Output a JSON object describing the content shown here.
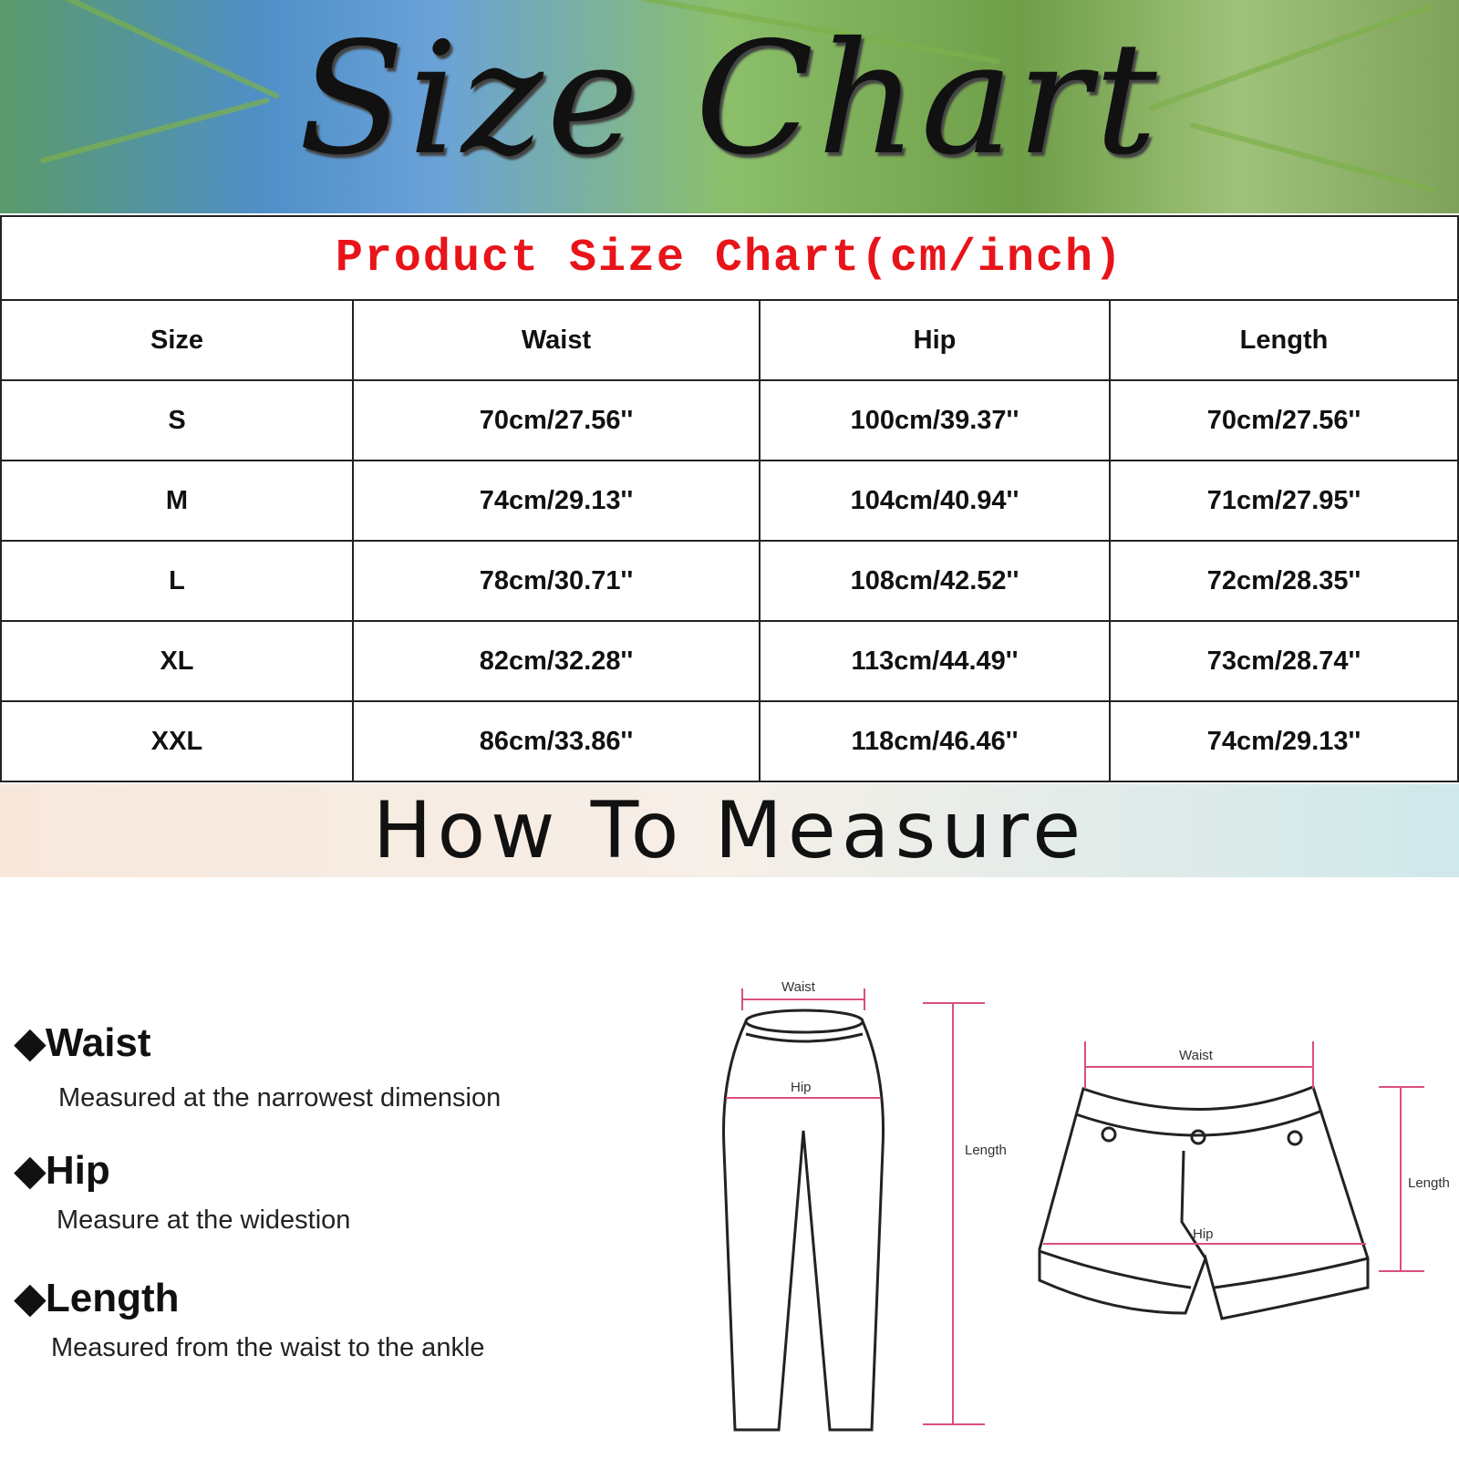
{
  "banner": {
    "title": "Size Chart"
  },
  "table": {
    "title": "Product Size Chart(cm/inch)",
    "headers": [
      "Size",
      "Waist",
      "Hip",
      "Length"
    ],
    "rows": [
      [
        "S",
        "70cm/27.56''",
        "100cm/39.37''",
        "70cm/27.56''"
      ],
      [
        "M",
        "74cm/29.13''",
        "104cm/40.94''",
        "71cm/27.95''"
      ],
      [
        "L",
        "78cm/30.71''",
        "108cm/42.52''",
        "72cm/28.35''"
      ],
      [
        "XL",
        "82cm/32.28''",
        "113cm/44.49''",
        "73cm/28.74''"
      ],
      [
        "XXL",
        "86cm/33.86''",
        "118cm/46.46''",
        "74cm/29.13''"
      ]
    ]
  },
  "measure": {
    "title": "How To Measure",
    "items": [
      {
        "label": "Waist",
        "desc": "Measured at the narrowest dimension"
      },
      {
        "label": "Hip",
        "desc": "Measure at the widestion"
      },
      {
        "label": "Length",
        "desc": "Measured from the waist to the ankle"
      }
    ]
  },
  "diagram": {
    "pants": {
      "waist": "Waist",
      "hip": "Hip",
      "length": "Length"
    },
    "shorts": {
      "waist": "Waist",
      "hip": "Hip",
      "length": "Length"
    }
  },
  "colors": {
    "title_red": "#e8141a",
    "arrow_pink": "#d9507a"
  }
}
